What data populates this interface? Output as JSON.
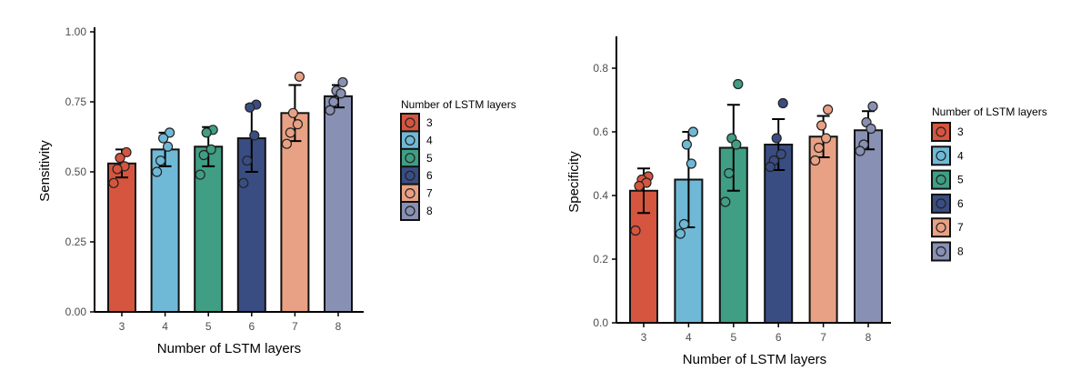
{
  "chart_data": [
    {
      "type": "bar",
      "xlabel": "Number of LSTM layers",
      "ylabel": "Sensitivity",
      "categories": [
        "3",
        "4",
        "5",
        "6",
        "7",
        "8"
      ],
      "values": [
        0.53,
        0.58,
        0.59,
        0.62,
        0.71,
        0.77
      ],
      "error": [
        0.05,
        0.06,
        0.07,
        0.12,
        0.1,
        0.04
      ],
      "points": [
        [
          0.57,
          0.55,
          0.52,
          0.51,
          0.46
        ],
        [
          0.64,
          0.62,
          0.59,
          0.54,
          0.5
        ],
        [
          0.65,
          0.64,
          0.58,
          0.56,
          0.49
        ],
        [
          0.74,
          0.73,
          0.63,
          0.54,
          0.46
        ],
        [
          0.84,
          0.71,
          0.67,
          0.64,
          0.6
        ],
        [
          0.82,
          0.79,
          0.78,
          0.75,
          0.72
        ]
      ],
      "ylim": [
        0,
        1
      ],
      "yticks": [
        "0.00",
        "0.25",
        "0.50",
        "0.75",
        "1.00"
      ],
      "legend": {
        "title": "Number of LSTM layers",
        "position": "right",
        "items": [
          "3",
          "4",
          "5",
          "6",
          "7",
          "8"
        ]
      },
      "grid": false
    },
    {
      "type": "bar",
      "xlabel": "Number of LSTM layers",
      "ylabel": "Specificity",
      "categories": [
        "3",
        "4",
        "5",
        "6",
        "7",
        "8"
      ],
      "values": [
        0.415,
        0.45,
        0.55,
        0.56,
        0.585,
        0.605
      ],
      "error": [
        0.07,
        0.15,
        0.135,
        0.08,
        0.065,
        0.06
      ],
      "points": [
        [
          0.46,
          0.45,
          0.44,
          0.43,
          0.29
        ],
        [
          0.6,
          0.56,
          0.5,
          0.31,
          0.28
        ],
        [
          0.75,
          0.58,
          0.56,
          0.47,
          0.38
        ],
        [
          0.69,
          0.58,
          0.53,
          0.51,
          0.49
        ],
        [
          0.67,
          0.62,
          0.58,
          0.55,
          0.51
        ],
        [
          0.68,
          0.63,
          0.61,
          0.56,
          0.54
        ]
      ],
      "ylim": [
        0,
        0.9
      ],
      "yticks": [
        "0.0",
        "0.2",
        "0.4",
        "0.6",
        "0.8"
      ],
      "legend": {
        "title": "Number of LSTM layers",
        "position": "right",
        "items": [
          "3",
          "4",
          "5",
          "6",
          "7",
          "8"
        ]
      },
      "grid": false
    }
  ],
  "colors": [
    "#d6553f",
    "#6fb9d6",
    "#3f9e83",
    "#3a4d82",
    "#e8a184",
    "#8890b3"
  ]
}
